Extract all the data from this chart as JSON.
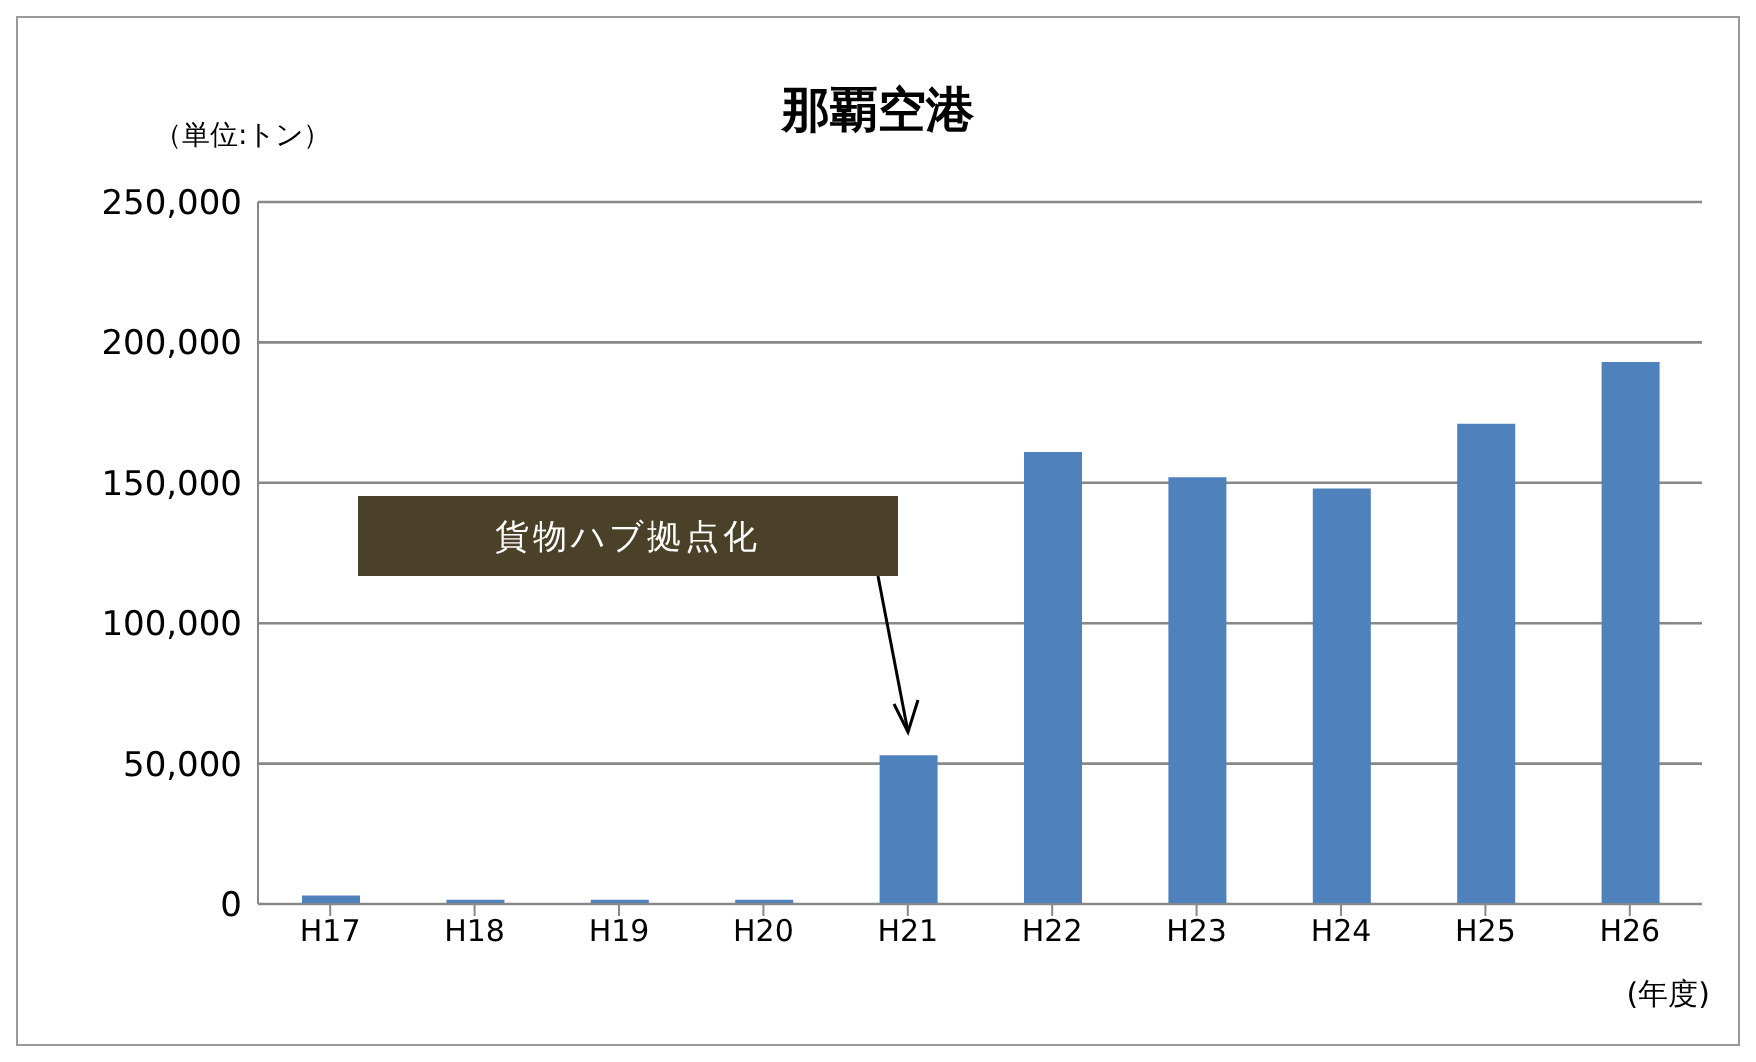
{
  "chart_data": {
    "type": "bar",
    "title": "那覇空港",
    "ylabel": "（単位:トン）",
    "xlabel": "(年度)",
    "categories": [
      "H17",
      "H18",
      "H19",
      "H20",
      "H21",
      "H22",
      "H23",
      "H24",
      "H25",
      "H26"
    ],
    "values": [
      3000,
      1500,
      1500,
      1500,
      53000,
      161000,
      152000,
      148000,
      171000,
      193000
    ],
    "color": "#4f81bd",
    "ylim": [
      0,
      250000
    ],
    "yticks": [
      0,
      {
        "value": 50000,
        "label": "50,000"
      },
      {
        "value": 100000,
        "label": "100,000"
      },
      {
        "value": 150000,
        "label": "150,000"
      },
      {
        "value": 200000,
        "label": "200,000"
      },
      {
        "value": 250000,
        "label": "250,000"
      }
    ],
    "grid": "y",
    "annotations": [
      "貨物ハブ拠点化"
    ]
  }
}
